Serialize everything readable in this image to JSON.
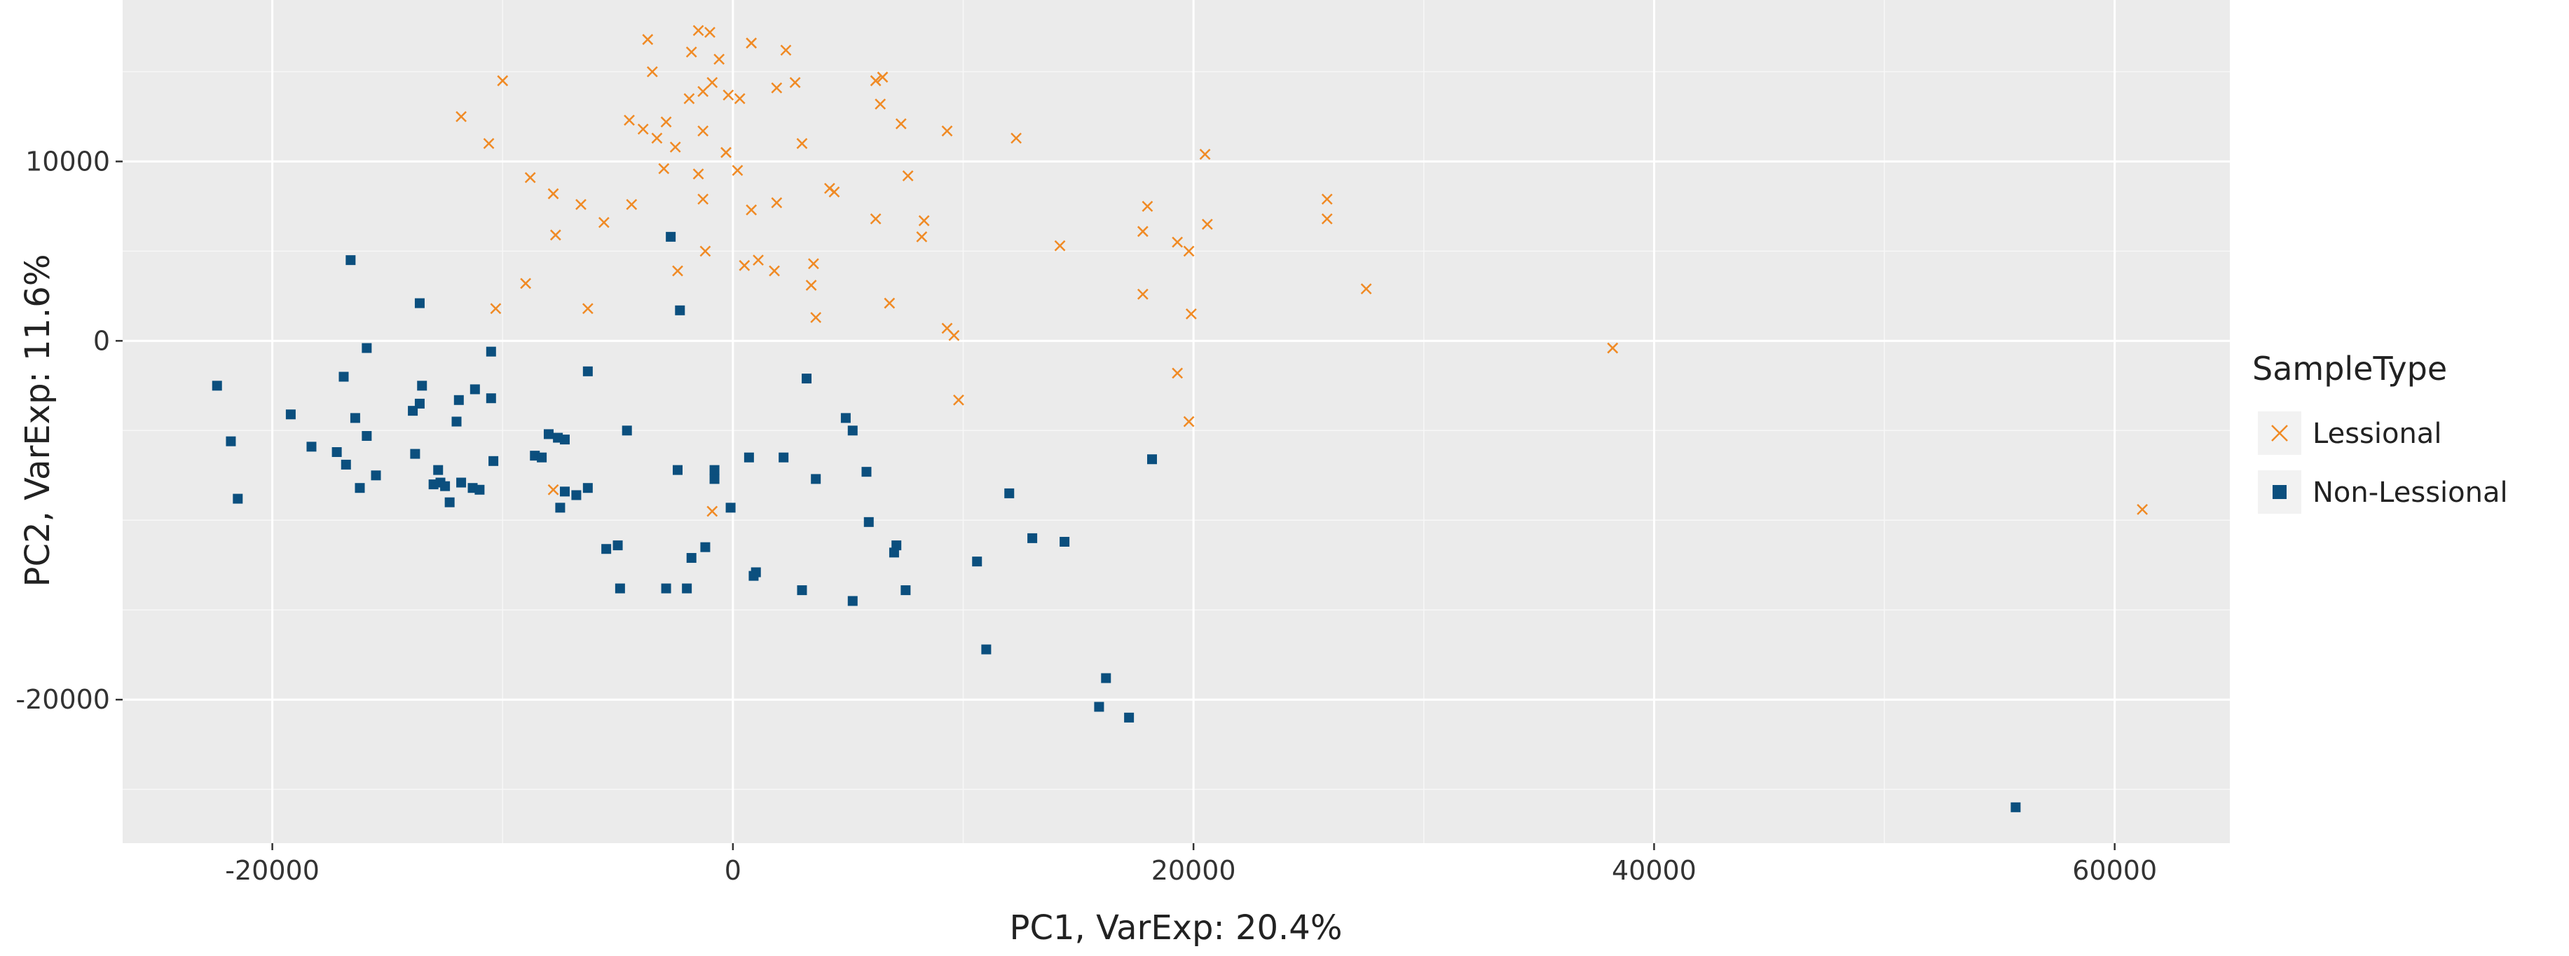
{
  "chart_data": {
    "type": "scatter",
    "xlabel": "PC1, VarExp: 20.4%",
    "ylabel": "PC2, VarExp: 11.6%",
    "xlim": [
      -26500,
      65000
    ],
    "ylim": [
      -28000,
      19000
    ],
    "x_ticks": [
      -20000,
      0,
      20000,
      40000,
      60000
    ],
    "x_tick_labels": [
      "-20000",
      "0",
      "20000",
      "40000",
      "60000"
    ],
    "y_ticks": [
      -20000,
      0,
      10000
    ],
    "y_tick_labels": [
      "-20000",
      "0",
      "10000"
    ],
    "y_minor_gridlines": [
      -25000,
      -15000,
      -10000,
      -5000,
      5000,
      15000
    ],
    "grid": true,
    "legend": {
      "title": "SampleType",
      "placement": "right",
      "entries": [
        "Lessional",
        "Non-Lessional"
      ]
    },
    "series": [
      {
        "name": "Lessional",
        "marker": "x",
        "color": "#F08A24",
        "points": [
          [
            -1500,
            17300
          ],
          [
            -1000,
            17200
          ],
          [
            -3700,
            16800
          ],
          [
            800,
            16600
          ],
          [
            2300,
            16200
          ],
          [
            -1800,
            16100
          ],
          [
            -600,
            15700
          ],
          [
            -3500,
            15000
          ],
          [
            6500,
            14700
          ],
          [
            6200,
            14500
          ],
          [
            -900,
            14400
          ],
          [
            2700,
            14400
          ],
          [
            1900,
            14100
          ],
          [
            -1300,
            13900
          ],
          [
            -200,
            13700
          ],
          [
            300,
            13500
          ],
          [
            -1900,
            13500
          ],
          [
            6400,
            13200
          ],
          [
            -11800,
            12500
          ],
          [
            -10000,
            14500
          ],
          [
            -4500,
            12300
          ],
          [
            -2900,
            12200
          ],
          [
            -3900,
            11800
          ],
          [
            7300,
            12100
          ],
          [
            -1300,
            11700
          ],
          [
            -3300,
            11300
          ],
          [
            -10600,
            11000
          ],
          [
            -2500,
            10800
          ],
          [
            3000,
            11000
          ],
          [
            9300,
            11700
          ],
          [
            12300,
            11300
          ],
          [
            -300,
            10500
          ],
          [
            20500,
            10400
          ],
          [
            -3000,
            9600
          ],
          [
            -1500,
            9300
          ],
          [
            200,
            9500
          ],
          [
            -8800,
            9100
          ],
          [
            7600,
            9200
          ],
          [
            4200,
            8500
          ],
          [
            4400,
            8300
          ],
          [
            -7800,
            8200
          ],
          [
            -1300,
            7900
          ],
          [
            1900,
            7700
          ],
          [
            18000,
            7500
          ],
          [
            25800,
            7900
          ],
          [
            -4400,
            7600
          ],
          [
            -6600,
            7600
          ],
          [
            800,
            7300
          ],
          [
            8300,
            6700
          ],
          [
            -5600,
            6600
          ],
          [
            6200,
            6800
          ],
          [
            20600,
            6500
          ],
          [
            25800,
            6800
          ],
          [
            -7700,
            5900
          ],
          [
            17800,
            6100
          ],
          [
            8200,
            5800
          ],
          [
            19300,
            5500
          ],
          [
            19800,
            5000
          ],
          [
            -1200,
            5000
          ],
          [
            14200,
            5300
          ],
          [
            1100,
            4500
          ],
          [
            500,
            4200
          ],
          [
            -2400,
            3900
          ],
          [
            1800,
            3900
          ],
          [
            3500,
            4300
          ],
          [
            -9000,
            3200
          ],
          [
            27500,
            2900
          ],
          [
            3400,
            3100
          ],
          [
            17800,
            2600
          ],
          [
            6800,
            2100
          ],
          [
            -10300,
            1800
          ],
          [
            -6300,
            1800
          ],
          [
            3600,
            1300
          ],
          [
            19900,
            1500
          ],
          [
            9300,
            700
          ],
          [
            9600,
            300
          ],
          [
            38200,
            -400
          ],
          [
            19300,
            -1800
          ],
          [
            9800,
            -3300
          ],
          [
            19800,
            -4500
          ],
          [
            -7800,
            -8300
          ],
          [
            -900,
            -9500
          ],
          [
            61200,
            -9400
          ]
        ]
      },
      {
        "name": "Non-Lessional",
        "marker": "square",
        "color": "#0B4F7E",
        "points": [
          [
            -2700,
            5800
          ],
          [
            -16600,
            4500
          ],
          [
            -13600,
            2100
          ],
          [
            -2300,
            1700
          ],
          [
            -15900,
            -400
          ],
          [
            -10500,
            -600
          ],
          [
            -6300,
            -1700
          ],
          [
            -22400,
            -2500
          ],
          [
            -16900,
            -2000
          ],
          [
            -13500,
            -2500
          ],
          [
            3200,
            -2100
          ],
          [
            -11200,
            -2700
          ],
          [
            -10500,
            -3200
          ],
          [
            -11900,
            -3300
          ],
          [
            -13600,
            -3500
          ],
          [
            -13900,
            -3900
          ],
          [
            -19200,
            -4100
          ],
          [
            -16400,
            -4300
          ],
          [
            -15900,
            -5300
          ],
          [
            -12000,
            -4500
          ],
          [
            -8000,
            -5200
          ],
          [
            -7600,
            -5400
          ],
          [
            -7300,
            -5500
          ],
          [
            -4600,
            -5000
          ],
          [
            4900,
            -4300
          ],
          [
            5200,
            -5000
          ],
          [
            -21800,
            -5600
          ],
          [
            -18300,
            -5900
          ],
          [
            -17200,
            -6200
          ],
          [
            -13800,
            -6300
          ],
          [
            -10400,
            -6700
          ],
          [
            -8600,
            -6400
          ],
          [
            -8300,
            -6500
          ],
          [
            -16800,
            -6900
          ],
          [
            -15500,
            -7500
          ],
          [
            -12800,
            -7200
          ],
          [
            -2400,
            -7200
          ],
          [
            -800,
            -7200
          ],
          [
            -800,
            -7700
          ],
          [
            700,
            -6500
          ],
          [
            2200,
            -6500
          ],
          [
            5800,
            -7300
          ],
          [
            18200,
            -6600
          ],
          [
            -12700,
            -7900
          ],
          [
            -12500,
            -8100
          ],
          [
            -11800,
            -7900
          ],
          [
            -11300,
            -8200
          ],
          [
            -11000,
            -8300
          ],
          [
            -16200,
            -8200
          ],
          [
            -21500,
            -8800
          ],
          [
            -13000,
            -8000
          ],
          [
            -12300,
            -9000
          ],
          [
            -7300,
            -8400
          ],
          [
            -7500,
            -9300
          ],
          [
            -6800,
            -8600
          ],
          [
            -6300,
            -8200
          ],
          [
            3600,
            -7700
          ],
          [
            -100,
            -9300
          ],
          [
            12000,
            -8500
          ],
          [
            5900,
            -10100
          ],
          [
            -5500,
            -11600
          ],
          [
            -5000,
            -11400
          ],
          [
            -1800,
            -12100
          ],
          [
            -1200,
            -11500
          ],
          [
            7100,
            -11400
          ],
          [
            7000,
            -11800
          ],
          [
            10600,
            -12300
          ],
          [
            13000,
            -11000
          ],
          [
            14400,
            -11200
          ],
          [
            -4900,
            -13800
          ],
          [
            -2900,
            -13800
          ],
          [
            -2000,
            -13800
          ],
          [
            1000,
            -12900
          ],
          [
            900,
            -13100
          ],
          [
            3000,
            -13900
          ],
          [
            5200,
            -14500
          ],
          [
            7500,
            -13900
          ],
          [
            11000,
            -17200
          ],
          [
            16200,
            -18800
          ],
          [
            15900,
            -20400
          ],
          [
            17200,
            -21000
          ],
          [
            55700,
            -26000
          ]
        ]
      }
    ]
  }
}
